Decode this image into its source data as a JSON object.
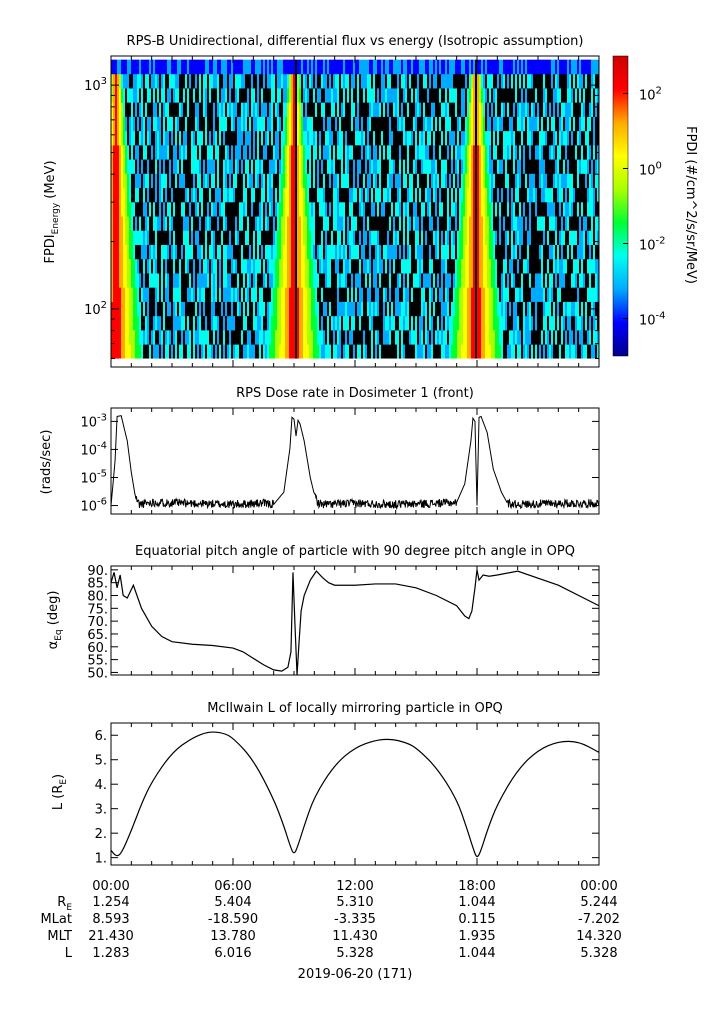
{
  "chart_data": [
    {
      "type": "heatmap",
      "title": "RPS-B  Unidirectional, differential flux vs energy (Isotropic assumption)",
      "ylabel_main": "FPDI",
      "ylabel_sub": "Energy",
      "ylabel_unit": " (MeV)",
      "yscale": "log",
      "ylim": [
        55,
        1350
      ],
      "y_ticks": [
        {
          "value": 100,
          "base": "10",
          "exp": "2"
        },
        {
          "value": 1000,
          "base": "10",
          "exp": "3"
        }
      ],
      "xlim_hours": [
        0,
        24
      ],
      "colorbar": {
        "label": "FPDI (#/cm^2/s/sr/MeV)",
        "scale": "log",
        "range": [
          1e-05,
          1000
        ],
        "ticks": [
          {
            "value": 100,
            "base": "10",
            "exp": "2"
          },
          {
            "value": 1,
            "base": "10",
            "exp": "0"
          },
          {
            "value": 0.01,
            "base": "10",
            "exp": "-2"
          },
          {
            "value": 0.0001,
            "base": "10",
            "exp": "-4"
          }
        ],
        "colors": [
          "#00008b",
          "#0000ff",
          "#00aaff",
          "#00ffee",
          "#00ff33",
          "#aaff00",
          "#ffff00",
          "#ffaa00",
          "#ff0000",
          "#cc0000"
        ]
      },
      "belt_crossings_hours": [
        0.25,
        9.0,
        17.95
      ],
      "slot_gap_hours": [
        [
          9.05,
          9.15
        ],
        [
          17.9,
          18.0
        ]
      ]
    },
    {
      "type": "line",
      "title": "RPS  Dose rate in Dosimeter 1 (front)",
      "ylabel": "(rads/sec)",
      "yscale": "log",
      "ylim": [
        5e-07,
        0.003
      ],
      "y_ticks": [
        {
          "value": 0.001,
          "base": "10",
          "exp": "-3"
        },
        {
          "value": 0.0001,
          "base": "10",
          "exp": "-4"
        },
        {
          "value": 1e-05,
          "base": "10",
          "exp": "-5"
        },
        {
          "value": 1e-06,
          "base": "10",
          "exp": "-6"
        }
      ],
      "x_hours": [
        0,
        0.1,
        0.2,
        0.3,
        0.5,
        0.8,
        1.0,
        1.2,
        1.4,
        2.0,
        4.0,
        6.0,
        7.5,
        8.0,
        8.5,
        8.8,
        8.9,
        9.0,
        9.1,
        9.2,
        9.3,
        9.5,
        9.8,
        10.0,
        10.2,
        10.5,
        12.0,
        14.0,
        16.0,
        17.0,
        17.4,
        17.7,
        17.8,
        17.9,
        18.0,
        18.1,
        18.2,
        18.5,
        18.8,
        19.2,
        19.5,
        20.0,
        22.0,
        24.0
      ],
      "values": [
        1e-06,
        6e-06,
        4e-05,
        0.0015,
        0.0016,
        0.0002,
        1.5e-05,
        2e-06,
        1.1e-06,
        1.3e-06,
        1.2e-06,
        1.1e-06,
        1.2e-06,
        1.1e-06,
        3e-06,
        0.00011,
        0.0014,
        0.0012,
        0.0003,
        0.0011,
        0.0008,
        0.0002,
        1e-05,
        2.5e-06,
        1.2e-06,
        1.1e-06,
        1.2e-06,
        1.1e-06,
        1.2e-06,
        1.3e-06,
        6e-06,
        0.0002,
        0.0013,
        0.001,
        1e-06,
        0.0014,
        0.0015,
        0.0004,
        2e-05,
        3e-06,
        1.2e-06,
        1.1e-06,
        1.2e-06,
        1.2e-06
      ]
    },
    {
      "type": "line",
      "title": "Equatorial pitch angle of particle with 90 degree pitch angle in OPQ",
      "ylabel": "α",
      "ylabel_sub": "Eq",
      "ylabel_unit": " (deg)",
      "ylim": [
        49,
        91.5
      ],
      "y_ticks": [
        50,
        55,
        60,
        65,
        70,
        75,
        80,
        85,
        90
      ],
      "x_hours": [
        0,
        0.15,
        0.3,
        0.45,
        0.6,
        0.8,
        1.1,
        1.5,
        2.0,
        2.5,
        3.0,
        4.0,
        5.0,
        6.0,
        6.5,
        7.0,
        7.5,
        8.0,
        8.4,
        8.7,
        8.85,
        8.95,
        9.05,
        9.15,
        9.25,
        9.35,
        9.5,
        9.8,
        10.1,
        10.4,
        10.7,
        11.0,
        12.0,
        13.0,
        14.0,
        15.0,
        16.0,
        17.0,
        17.4,
        17.6,
        17.75,
        17.9,
        18.0,
        18.1,
        18.3,
        18.6,
        19.0,
        20.0,
        22.0,
        24.0
      ],
      "values": [
        85,
        89,
        83,
        88,
        80,
        79,
        84,
        75,
        68,
        64,
        62,
        61,
        60.5,
        59.5,
        58,
        55.5,
        53,
        51,
        50.5,
        52,
        58,
        89,
        68,
        49,
        62,
        74,
        80,
        86,
        89.5,
        87,
        85,
        84,
        84,
        84.5,
        84.5,
        83,
        80,
        76,
        72,
        71,
        74,
        83,
        90,
        86,
        88,
        87.5,
        88,
        89.5,
        84,
        76
      ]
    },
    {
      "type": "line",
      "title": "McIlwain L of locally mirroring particle in OPQ",
      "ylabel": "L (R",
      "ylabel_sub": "E",
      "ylabel_unit": ")",
      "ylim": [
        0.7,
        6.5
      ],
      "y_ticks": [
        1,
        2,
        3,
        4,
        5,
        6
      ],
      "x_hours": [
        0,
        0.25,
        0.5,
        1.0,
        1.5,
        2.0,
        3.0,
        4.0,
        4.8,
        5.5,
        6.0,
        7.0,
        8.0,
        8.5,
        8.8,
        9.0,
        9.2,
        9.5,
        10.0,
        11.0,
        12.0,
        13.0,
        13.8,
        14.5,
        15.0,
        16.0,
        17.0,
        17.5,
        17.8,
        18.0,
        18.2,
        18.5,
        19.0,
        20.0,
        21.0,
        22.0,
        23.0,
        24.0
      ],
      "values": [
        1.3,
        1.05,
        1.15,
        2.1,
        3.2,
        4.1,
        5.3,
        5.9,
        6.15,
        6.1,
        5.9,
        5.0,
        3.4,
        2.3,
        1.5,
        1.1,
        1.5,
        2.3,
        3.5,
        4.8,
        5.5,
        5.8,
        5.85,
        5.7,
        5.5,
        4.7,
        3.4,
        2.2,
        1.4,
        0.95,
        1.3,
        2.1,
        3.2,
        4.6,
        5.4,
        5.75,
        5.75,
        5.3
      ]
    }
  ],
  "time_ticks": [
    "00:00",
    "06:00",
    "12:00",
    "18:00",
    "00:00"
  ],
  "ephemeris": {
    "row_labels": [
      {
        "main": "R",
        "sub": "E"
      },
      {
        "main": "MLat",
        "sub": ""
      },
      {
        "main": "MLT",
        "sub": ""
      },
      {
        "main": "L",
        "sub": ""
      }
    ],
    "rows": [
      [
        "1.254",
        "5.404",
        "5.310",
        "1.044",
        "5.244"
      ],
      [
        "8.593",
        "-18.590",
        "-3.335",
        "0.115",
        "-7.202"
      ],
      [
        "21.430",
        "13.780",
        "11.430",
        "1.935",
        "14.320"
      ],
      [
        "1.283",
        "6.016",
        "5.328",
        "1.044",
        "5.328"
      ]
    ]
  },
  "date_label": "2019-06-20 (171)"
}
